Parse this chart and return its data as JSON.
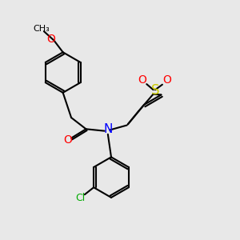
{
  "bg_color": "#e8e8e8",
  "bond_color": "#000000",
  "bond_width": 1.5,
  "atom_colors": {
    "O": "#ff0000",
    "N": "#0000ff",
    "S": "#cccc00",
    "Cl": "#00aa00",
    "C": "#000000"
  },
  "font_size": 9,
  "figsize": [
    3.0,
    3.0
  ],
  "dpi": 100
}
